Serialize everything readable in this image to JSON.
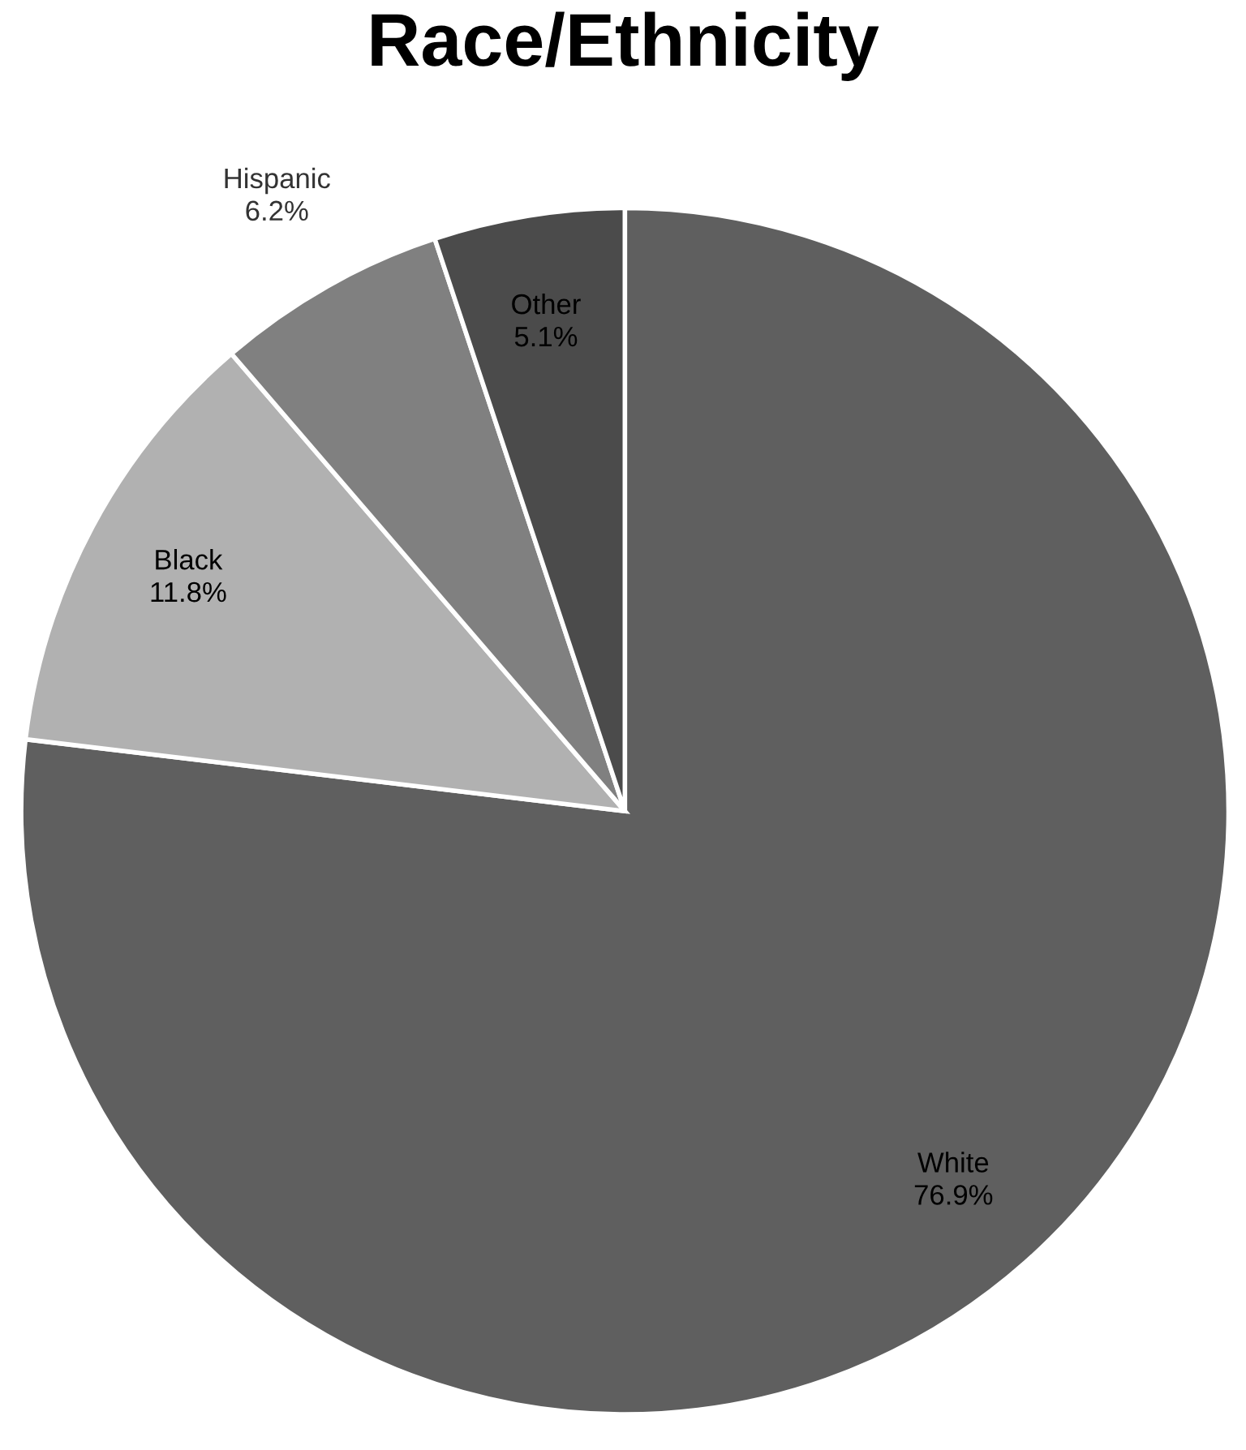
{
  "chart_data": {
    "type": "pie",
    "title": "Race/Ethnicity",
    "categories": [
      "White",
      "Black",
      "Hispanic",
      "Other"
    ],
    "values": [
      76.9,
      11.8,
      6.2,
      5.1
    ],
    "value_labels": [
      "76.9%",
      "11.8%",
      "6.2%",
      "5.1%"
    ],
    "colors": [
      "#5f5f5f",
      "#b1b1b1",
      "#808080",
      "#4b4b4b"
    ],
    "legend": false
  }
}
